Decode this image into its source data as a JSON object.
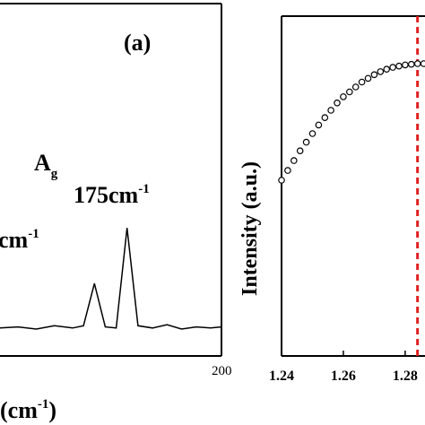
{
  "chart_data": [
    {
      "type": "line",
      "panel_label": "(a)",
      "xlabel": "(cm",
      "xlabel_sup": "-1",
      "xlabel_close": ")",
      "x_ticks": [
        "200"
      ],
      "peaks": [
        {
          "name": "A",
          "name_sub": "g",
          "label": "175cm",
          "label_sup": "-1"
        },
        {
          "label": "cm",
          "label_sup": "-1"
        }
      ],
      "series": [
        {
          "values": [
            [
              140,
              0.05
            ],
            [
              145,
              0.06
            ],
            [
              150,
              0.04
            ],
            [
              155,
              0.07
            ],
            [
              160,
              0.05
            ],
            [
              163,
              0.07
            ],
            [
              166,
              0.45
            ],
            [
              169,
              0.06
            ],
            [
              172,
              0.05
            ],
            [
              175,
              0.95
            ],
            [
              178,
              0.07
            ],
            [
              182,
              0.05
            ],
            [
              186,
              0.08
            ],
            [
              190,
              0.04
            ],
            [
              194,
              0.06
            ],
            [
              198,
              0.05
            ],
            [
              201,
              0.06
            ]
          ]
        }
      ]
    },
    {
      "type": "scatter",
      "ylabel": "Intensity (a.u.)",
      "x_ticks": [
        "1.24",
        "1.26",
        "1.28"
      ],
      "xlim": [
        1.24,
        1.287
      ],
      "dashed_line_x": 1.284,
      "dashed_line_color": "#e02020",
      "series": [
        {
          "x": [
            1.24,
            1.242,
            1.244,
            1.246,
            1.248,
            1.25,
            1.252,
            1.254,
            1.256,
            1.258,
            1.26,
            1.262,
            1.264,
            1.266,
            1.268,
            1.27,
            1.272,
            1.274,
            1.276,
            1.278,
            1.28,
            1.282,
            1.284,
            1.286
          ],
          "y": [
            0.05,
            0.13,
            0.21,
            0.29,
            0.36,
            0.43,
            0.5,
            0.56,
            0.62,
            0.68,
            0.73,
            0.77,
            0.81,
            0.85,
            0.88,
            0.91,
            0.935,
            0.955,
            0.97,
            0.98,
            0.99,
            0.995,
            1.0,
            1.0
          ]
        }
      ]
    }
  ]
}
